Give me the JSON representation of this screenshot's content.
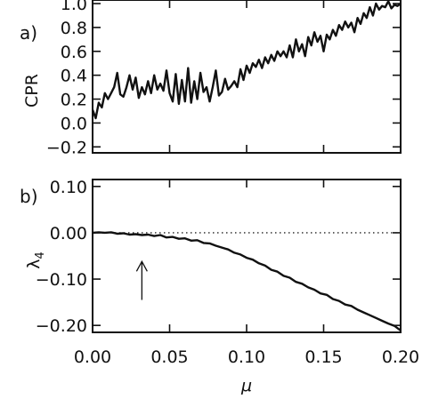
{
  "chart_data": [
    {
      "type": "line",
      "panel_tag": "a)",
      "xlabel": "",
      "ylabel": "CPR",
      "xlim": [
        0.0,
        0.2
      ],
      "ylim": [
        -0.25,
        1.03
      ],
      "yticks": [
        -0.2,
        0.0,
        0.2,
        0.4,
        0.6,
        0.8,
        1.0
      ],
      "ytick_labels": [
        "−0.2",
        "0.0",
        "0.2",
        "0.4",
        "0.6",
        "0.8",
        "1.0"
      ],
      "grid": false,
      "series": [
        {
          "x": [
            0.0,
            0.002,
            0.004,
            0.006,
            0.008,
            0.01,
            0.012,
            0.014,
            0.016,
            0.018,
            0.02,
            0.022,
            0.024,
            0.026,
            0.028,
            0.03,
            0.032,
            0.034,
            0.036,
            0.038,
            0.04,
            0.042,
            0.044,
            0.046,
            0.048,
            0.05,
            0.052,
            0.054,
            0.056,
            0.058,
            0.06,
            0.062,
            0.064,
            0.066,
            0.068,
            0.07,
            0.072,
            0.074,
            0.076,
            0.078,
            0.08,
            0.082,
            0.084,
            0.086,
            0.088,
            0.09,
            0.092,
            0.094,
            0.096,
            0.098,
            0.1,
            0.102,
            0.104,
            0.106,
            0.108,
            0.11,
            0.112,
            0.114,
            0.116,
            0.118,
            0.12,
            0.122,
            0.124,
            0.126,
            0.128,
            0.13,
            0.132,
            0.134,
            0.136,
            0.138,
            0.14,
            0.142,
            0.144,
            0.146,
            0.148,
            0.15,
            0.152,
            0.154,
            0.156,
            0.158,
            0.16,
            0.162,
            0.164,
            0.166,
            0.168,
            0.17,
            0.172,
            0.174,
            0.176,
            0.178,
            0.18,
            0.182,
            0.184,
            0.186,
            0.188,
            0.19,
            0.192,
            0.194,
            0.196,
            0.198,
            0.2
          ],
          "y": [
            0.11,
            0.04,
            0.17,
            0.13,
            0.25,
            0.2,
            0.25,
            0.3,
            0.42,
            0.24,
            0.22,
            0.3,
            0.4,
            0.28,
            0.38,
            0.21,
            0.3,
            0.24,
            0.35,
            0.25,
            0.4,
            0.28,
            0.33,
            0.27,
            0.44,
            0.25,
            0.18,
            0.41,
            0.16,
            0.36,
            0.18,
            0.46,
            0.17,
            0.35,
            0.2,
            0.42,
            0.26,
            0.3,
            0.18,
            0.3,
            0.44,
            0.23,
            0.26,
            0.37,
            0.28,
            0.31,
            0.35,
            0.3,
            0.45,
            0.36,
            0.48,
            0.42,
            0.5,
            0.47,
            0.53,
            0.46,
            0.55,
            0.5,
            0.57,
            0.52,
            0.6,
            0.56,
            0.6,
            0.55,
            0.65,
            0.55,
            0.7,
            0.6,
            0.66,
            0.56,
            0.72,
            0.65,
            0.76,
            0.68,
            0.73,
            0.6,
            0.74,
            0.7,
            0.78,
            0.73,
            0.82,
            0.78,
            0.85,
            0.8,
            0.84,
            0.76,
            0.88,
            0.83,
            0.92,
            0.88,
            0.97,
            0.9,
            1.0,
            0.95,
            0.98,
            0.97,
            1.02,
            0.96,
            0.99,
            0.98,
            1.0
          ],
          "stroke": "#111111"
        }
      ]
    },
    {
      "type": "line",
      "panel_tag": "b)",
      "xlabel": "μ",
      "ylabel": "λ",
      "ylabel_subscript": "4",
      "xlim": [
        0.0,
        0.2
      ],
      "ylim": [
        -0.215,
        0.115
      ],
      "xticks": [
        0.0,
        0.05,
        0.1,
        0.15,
        0.2
      ],
      "xtick_labels": [
        "0.00",
        "0.05",
        "0.10",
        "0.15",
        "0.20"
      ],
      "yticks": [
        -0.2,
        -0.1,
        0.0,
        0.1
      ],
      "ytick_labels": [
        "−0.20",
        "−0.10",
        "0.00",
        "0.10"
      ],
      "grid": false,
      "reference_line": {
        "y": 0.0,
        "style": "dotted"
      },
      "arrow": {
        "x": 0.032,
        "y_tail": -0.145,
        "y_head": -0.062
      },
      "series": [
        {
          "x": [
            0.0,
            0.004,
            0.008,
            0.012,
            0.016,
            0.02,
            0.024,
            0.028,
            0.032,
            0.036,
            0.04,
            0.044,
            0.048,
            0.052,
            0.056,
            0.06,
            0.064,
            0.068,
            0.072,
            0.076,
            0.08,
            0.084,
            0.088,
            0.092,
            0.096,
            0.1,
            0.104,
            0.108,
            0.112,
            0.116,
            0.12,
            0.124,
            0.128,
            0.132,
            0.136,
            0.14,
            0.144,
            0.148,
            0.152,
            0.156,
            0.16,
            0.164,
            0.168,
            0.172,
            0.176,
            0.18,
            0.184,
            0.188,
            0.192,
            0.196,
            0.2
          ],
          "y": [
            0.0,
            0.001,
            0.0,
            0.001,
            -0.002,
            -0.001,
            -0.004,
            -0.003,
            -0.005,
            -0.004,
            -0.007,
            -0.005,
            -0.01,
            -0.009,
            -0.013,
            -0.012,
            -0.017,
            -0.016,
            -0.022,
            -0.023,
            -0.028,
            -0.032,
            -0.036,
            -0.043,
            -0.047,
            -0.054,
            -0.058,
            -0.066,
            -0.071,
            -0.08,
            -0.084,
            -0.093,
            -0.097,
            -0.106,
            -0.11,
            -0.118,
            -0.123,
            -0.131,
            -0.134,
            -0.143,
            -0.147,
            -0.155,
            -0.158,
            -0.166,
            -0.172,
            -0.178,
            -0.184,
            -0.19,
            -0.196,
            -0.201,
            -0.211
          ],
          "stroke": "#111111"
        }
      ]
    }
  ]
}
